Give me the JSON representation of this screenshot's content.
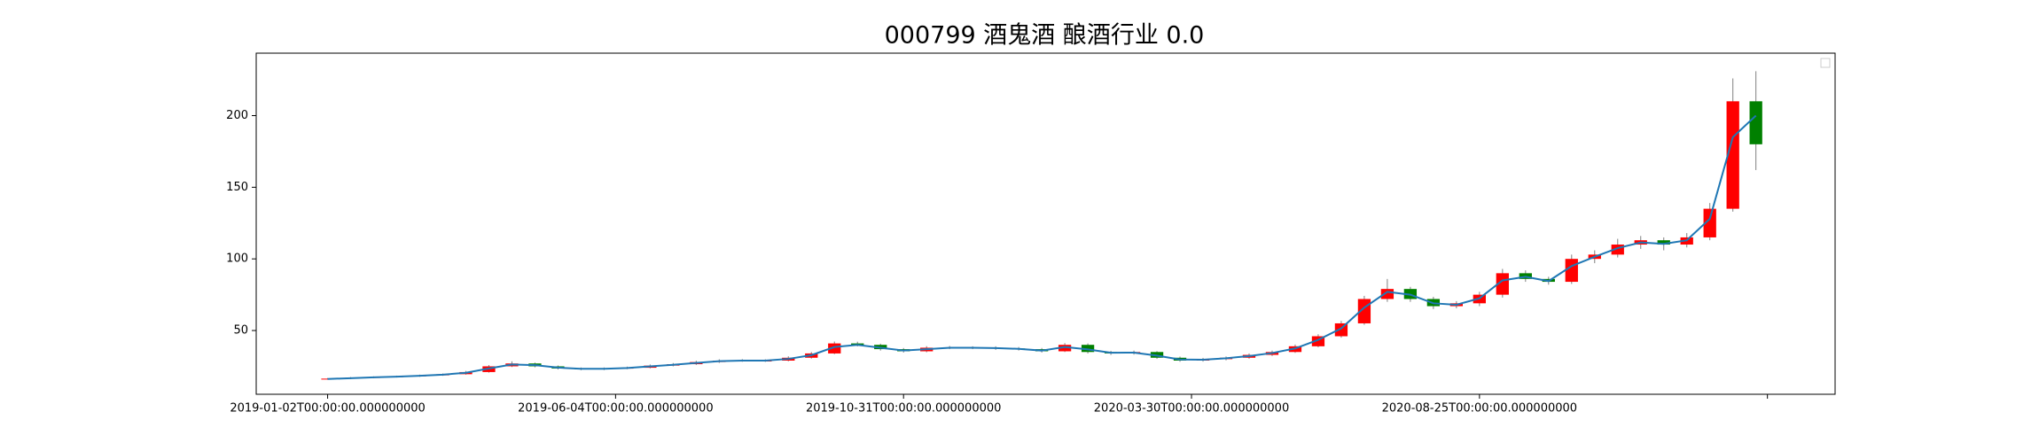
{
  "chart_data": {
    "type": "candlestick",
    "title": "000799 酒鬼酒 酿酒行业 0.0",
    "x": [
      0,
      8,
      16,
      24,
      32,
      40,
      48,
      56,
      64,
      72,
      80,
      88,
      96,
      104,
      112,
      120,
      128,
      136,
      144,
      152,
      160,
      168,
      176,
      184,
      192,
      200,
      208,
      216,
      224,
      232,
      240,
      248,
      256,
      264,
      272,
      280,
      288,
      296,
      304,
      312,
      320,
      328,
      336,
      344,
      352,
      360,
      368,
      376,
      384,
      392,
      400,
      408,
      416,
      424,
      432,
      440,
      448,
      456,
      464,
      472,
      480,
      488,
      496
    ],
    "open": [
      16.0,
      16.4,
      17.0,
      17.5,
      18.0,
      18.7,
      19.5,
      21.0,
      25.0,
      27.0,
      25.0,
      23.5,
      23.0,
      23.5,
      24.0,
      25.5,
      26.5,
      28.0,
      29.0,
      29.0,
      29.0,
      31.0,
      34.0,
      41.0,
      40.0,
      37.0,
      35.5,
      38.0,
      38.0,
      38.0,
      37.5,
      37.0,
      35.5,
      40.0,
      35.0,
      34.0,
      35.0,
      31.0,
      29.0,
      30.0,
      31.0,
      33.0,
      35.0,
      39.0,
      46.0,
      55.0,
      72.0,
      79.0,
      72.0,
      67.0,
      69.0,
      75.0,
      90.0,
      86.0,
      84.0,
      100.0,
      103.0,
      110.0,
      113.0,
      110.0,
      115.0,
      135.0,
      210.0
    ],
    "high": [
      16.8,
      17.5,
      18.0,
      18.5,
      19.2,
      20.0,
      21.8,
      25.9,
      28.5,
      27.6,
      25.6,
      24.2,
      24.2,
      24.8,
      26.3,
      27.3,
      28.9,
      29.9,
      30.0,
      29.9,
      32.0,
      35.0,
      42.3,
      42.2,
      40.8,
      37.8,
      39.1,
      39.2,
      39.0,
      39.0,
      38.5,
      37.8,
      41.2,
      41.0,
      35.8,
      36.0,
      35.6,
      31.8,
      30.9,
      31.9,
      34.0,
      36.0,
      40.2,
      47.4,
      56.7,
      74.2,
      86.0,
      80.5,
      73.5,
      70.5,
      77.0,
      93.0,
      92.0,
      87.5,
      103.0,
      106.0,
      114.0,
      116.0,
      115.0,
      118.0,
      139.0,
      226.0,
      231.0
    ],
    "low": [
      15.8,
      16.1,
      16.7,
      17.2,
      17.7,
      18.4,
      19.2,
      20.6,
      24.5,
      24.3,
      22.8,
      22.3,
      22.4,
      23.0,
      23.6,
      25.0,
      26.0,
      27.4,
      28.2,
      28.1,
      28.5,
      30.4,
      33.5,
      38.9,
      36.0,
      34.6,
      34.8,
      37.0,
      37.0,
      36.5,
      36.0,
      34.6,
      35.0,
      34.0,
      33.0,
      33.2,
      30.2,
      28.2,
      28.3,
      29.2,
      30.3,
      32.2,
      34.4,
      38.3,
      45.0,
      54.0,
      70.0,
      70.0,
      65.0,
      65.5,
      67.0,
      73.0,
      84.0,
      82.0,
      82.5,
      97.0,
      101.0,
      107.0,
      106.0,
      108.0,
      113.0,
      133.0,
      162.0
    ],
    "close": [
      16.4,
      17.0,
      17.5,
      18.0,
      18.7,
      19.5,
      21.0,
      25.0,
      27.0,
      25.0,
      23.5,
      23.0,
      23.5,
      24.0,
      25.5,
      26.5,
      28.0,
      29.0,
      29.0,
      29.0,
      31.0,
      34.0,
      41.0,
      40.0,
      37.0,
      35.5,
      38.0,
      38.0,
      38.0,
      37.5,
      37.0,
      35.5,
      40.0,
      35.0,
      34.0,
      35.0,
      31.0,
      29.0,
      30.0,
      31.0,
      33.0,
      35.0,
      39.0,
      46.0,
      55.0,
      72.0,
      79.0,
      72.0,
      67.0,
      69.0,
      75.0,
      90.0,
      86.0,
      84.0,
      100.0,
      103.0,
      110.0,
      113.0,
      110.0,
      115.0,
      135.0,
      210.0,
      180.0
    ],
    "ma": {
      "color": "#1f77b4",
      "values": [
        16.2,
        16.7,
        17.3,
        17.8,
        18.4,
        19.2,
        20.5,
        23.5,
        26.3,
        25.8,
        24.1,
        23.3,
        23.3,
        23.8,
        25.0,
        26.1,
        27.4,
        28.6,
        29.0,
        29.0,
        30.2,
        32.8,
        38.5,
        40.0,
        38.0,
        36.0,
        37.0,
        38.0,
        38.0,
        37.7,
        37.2,
        36.0,
        38.5,
        36.8,
        34.5,
        34.6,
        32.5,
        29.8,
        29.6,
        30.6,
        32.2,
        34.3,
        37.5,
        43.5,
        51.5,
        66.0,
        77.0,
        75.0,
        69.0,
        68.0,
        72.5,
        85.0,
        87.5,
        84.5,
        95.0,
        101.5,
        107.5,
        111.5,
        110.5,
        113.0,
        128.0,
        185.0,
        200.0
      ]
    },
    "up_color": "#ff0000",
    "down_color": "#008000",
    "wick_color": "#808080",
    "xlim": [
      -24.8,
      523.5
    ],
    "ylim": [
      5.5,
      243.6
    ],
    "xticks": [
      {
        "value": 0,
        "label": "2019-01-02T00:00:00.000000000"
      },
      {
        "value": 100,
        "label": "2019-06-04T00:00:00.000000000"
      },
      {
        "value": 200,
        "label": "2019-10-31T00:00:00.000000000"
      },
      {
        "value": 300,
        "label": "2020-03-30T00:00:00.000000000"
      },
      {
        "value": 400,
        "label": "2020-08-25T00:00:00.000000000"
      },
      {
        "value": 500,
        "label": null
      }
    ],
    "yticks": [
      50,
      100,
      150,
      200
    ],
    "grid": false
  }
}
